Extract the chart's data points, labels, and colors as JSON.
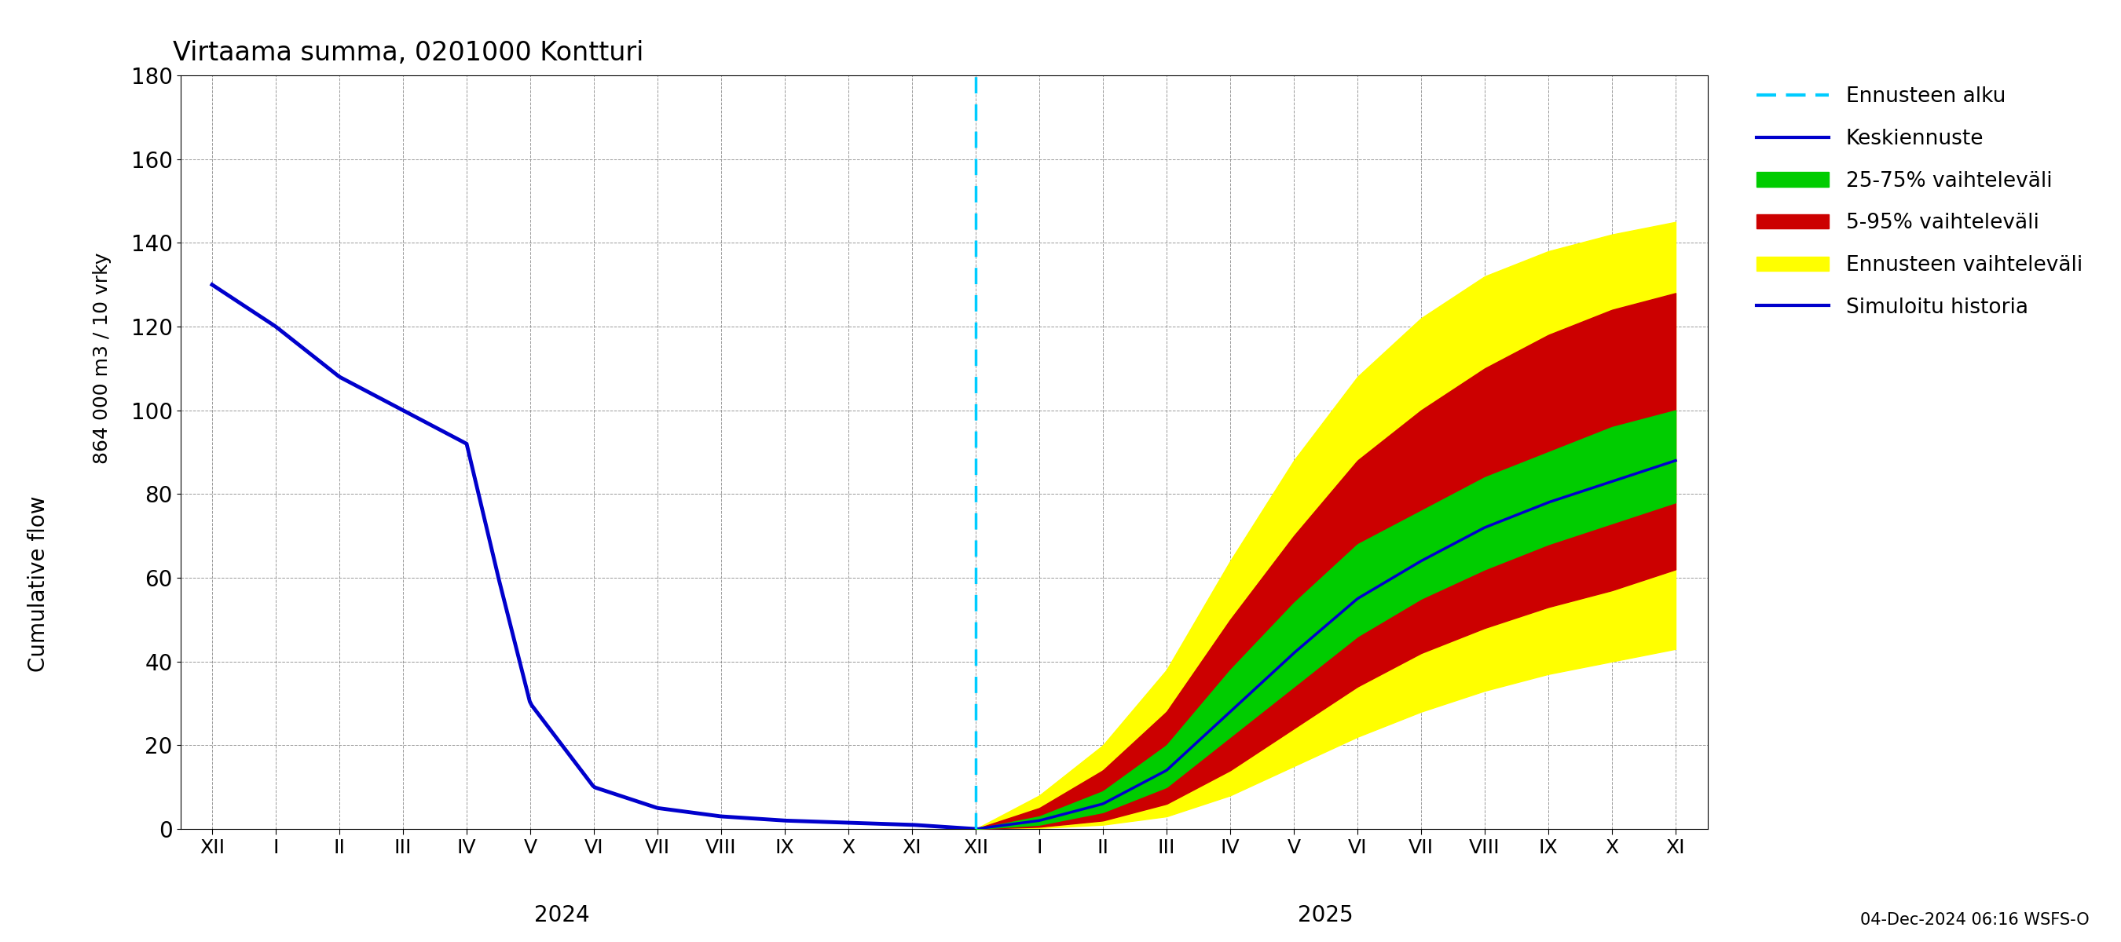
{
  "title": "Virtaama summa, 0201000 Kontturi",
  "ylabel_top": "864 000 m3 / 10 vrky",
  "ylabel_bottom": "Cumulative flow",
  "ylim": [
    0,
    180
  ],
  "yticks": [
    0,
    20,
    40,
    60,
    80,
    100,
    120,
    140,
    160,
    180
  ],
  "footnote": "04-Dec-2024 06:16 WSFS-O",
  "legend_labels": [
    "Ennusteen alku",
    "Keskiennuste",
    "25-75% vaihteleväli",
    "5-95% vaihteleväli",
    "Ennusteen vaihteleväli",
    "Simuloitu historia"
  ],
  "colors": {
    "history_line": "#0000cc",
    "forecast_line": "#0000cc",
    "p25_75": "#00cc00",
    "p5_95": "#cc0000",
    "forecast_band": "#ffff00",
    "vline": "#00ccff"
  },
  "months_2024": [
    "XII",
    "I",
    "II",
    "III",
    "IV",
    "V",
    "VI",
    "VII",
    "VIII",
    "IX",
    "X",
    "XI"
  ],
  "months_2025": [
    "XII",
    "I",
    "II",
    "III",
    "IV",
    "V",
    "VI",
    "VII",
    "VIII",
    "IX",
    "X",
    "XI"
  ],
  "year_label_2024": "2024",
  "year_label_2025": "2025",
  "hist_keypoints": [
    [
      0,
      130
    ],
    [
      1,
      120
    ],
    [
      2,
      108
    ],
    [
      3,
      100
    ],
    [
      4,
      92
    ],
    [
      4.5,
      60
    ],
    [
      5,
      30
    ],
    [
      6,
      10
    ],
    [
      7,
      5
    ],
    [
      8,
      3
    ],
    [
      9,
      2
    ],
    [
      10,
      1.5
    ],
    [
      11,
      1
    ],
    [
      12,
      0
    ]
  ],
  "median_keypoints": [
    [
      12,
      0
    ],
    [
      13,
      2
    ],
    [
      14,
      6
    ],
    [
      15,
      14
    ],
    [
      16,
      28
    ],
    [
      17,
      42
    ],
    [
      18,
      55
    ],
    [
      19,
      64
    ],
    [
      20,
      72
    ],
    [
      21,
      78
    ],
    [
      22,
      83
    ],
    [
      23,
      88
    ]
  ],
  "p25_keypoints": [
    [
      12,
      0
    ],
    [
      13,
      1
    ],
    [
      14,
      4
    ],
    [
      15,
      10
    ],
    [
      16,
      22
    ],
    [
      17,
      34
    ],
    [
      18,
      46
    ],
    [
      19,
      55
    ],
    [
      20,
      62
    ],
    [
      21,
      68
    ],
    [
      22,
      73
    ],
    [
      23,
      78
    ]
  ],
  "p75_keypoints": [
    [
      12,
      0
    ],
    [
      13,
      3
    ],
    [
      14,
      9
    ],
    [
      15,
      20
    ],
    [
      16,
      38
    ],
    [
      17,
      54
    ],
    [
      18,
      68
    ],
    [
      19,
      76
    ],
    [
      20,
      84
    ],
    [
      21,
      90
    ],
    [
      22,
      96
    ],
    [
      23,
      100
    ]
  ],
  "p5_keypoints": [
    [
      12,
      0
    ],
    [
      13,
      0.5
    ],
    [
      14,
      2
    ],
    [
      15,
      6
    ],
    [
      16,
      14
    ],
    [
      17,
      24
    ],
    [
      18,
      34
    ],
    [
      19,
      42
    ],
    [
      20,
      48
    ],
    [
      21,
      53
    ],
    [
      22,
      57
    ],
    [
      23,
      62
    ]
  ],
  "p95_keypoints": [
    [
      12,
      0
    ],
    [
      13,
      5
    ],
    [
      14,
      14
    ],
    [
      15,
      28
    ],
    [
      16,
      50
    ],
    [
      17,
      70
    ],
    [
      18,
      88
    ],
    [
      19,
      100
    ],
    [
      20,
      110
    ],
    [
      21,
      118
    ],
    [
      22,
      124
    ],
    [
      23,
      128
    ]
  ],
  "min_keypoints": [
    [
      12,
      0
    ],
    [
      13,
      0.2
    ],
    [
      14,
      1
    ],
    [
      15,
      3
    ],
    [
      16,
      8
    ],
    [
      17,
      15
    ],
    [
      18,
      22
    ],
    [
      19,
      28
    ],
    [
      20,
      33
    ],
    [
      21,
      37
    ],
    [
      22,
      40
    ],
    [
      23,
      43
    ]
  ],
  "max_keypoints": [
    [
      12,
      0
    ],
    [
      13,
      8
    ],
    [
      14,
      20
    ],
    [
      15,
      38
    ],
    [
      16,
      64
    ],
    [
      17,
      88
    ],
    [
      18,
      108
    ],
    [
      19,
      122
    ],
    [
      20,
      132
    ],
    [
      21,
      138
    ],
    [
      22,
      142
    ],
    [
      23,
      145
    ]
  ]
}
